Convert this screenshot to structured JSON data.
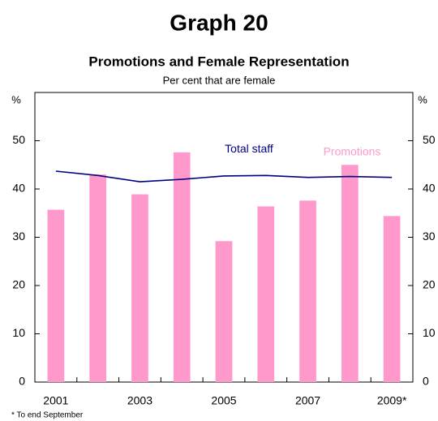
{
  "chart_data": {
    "type": "bar",
    "title": "Graph 20",
    "subtitle": "Promotions and Female Representation",
    "y_label": "Per cent that are female",
    "y_unit": "%",
    "footnote": "* To end September",
    "categories": [
      "2001",
      null,
      "2003",
      null,
      "2005",
      null,
      "2007",
      null,
      "2009*"
    ],
    "series": [
      {
        "name": "Promotions",
        "type": "bar",
        "color": "#ff99cc",
        "values": [
          35.7,
          43.0,
          38.9,
          47.6,
          29.2,
          36.4,
          37.6,
          45.0,
          34.4
        ]
      },
      {
        "name": "Total staff",
        "type": "line",
        "color": "#000080",
        "values": [
          43.7,
          42.8,
          41.5,
          42.0,
          42.7,
          42.8,
          42.4,
          42.6,
          42.4
        ]
      }
    ],
    "ylim": [
      0,
      60
    ],
    "yticks": [
      0,
      10,
      20,
      30,
      40,
      50
    ]
  }
}
